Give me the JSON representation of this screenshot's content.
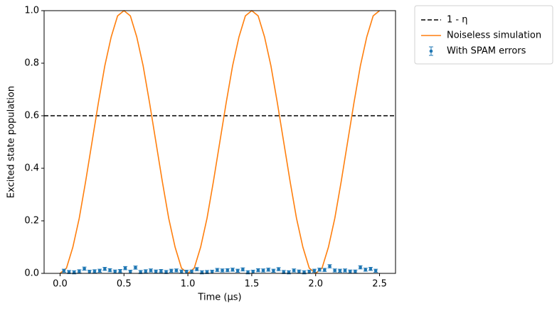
{
  "chart_data": {
    "type": "line",
    "xlabel": "Time (μs)",
    "ylabel": "Excited state population",
    "xlim": [
      -0.125,
      2.625
    ],
    "ylim": [
      0,
      1
    ],
    "xticks": [
      {
        "value": 0,
        "label": "0.0"
      },
      0.5,
      {
        "value": 1,
        "label": "1.0"
      },
      1.5,
      {
        "value": 2,
        "label": "2.0"
      },
      2.5
    ],
    "yticks": [
      {
        "value": 0,
        "label": "0.0"
      },
      0.2,
      0.4,
      0.6,
      0.8,
      {
        "value": 1,
        "label": "1.0"
      }
    ],
    "grid": false,
    "legend": "outside upper right",
    "hline": {
      "name": "1 - η",
      "y": 0.6,
      "color": "#000000"
    },
    "series": [
      {
        "name": "Noiseless simulation",
        "color": "#ff7f0e",
        "x": [
          0,
          0.05,
          0.1,
          0.15,
          0.2,
          0.25,
          0.3,
          0.35,
          0.4,
          0.45,
          0.5,
          0.55,
          0.6,
          0.65,
          0.7,
          0.75,
          0.8,
          0.85,
          0.9,
          0.95,
          1,
          1.05,
          1.1,
          1.15,
          1.2,
          1.25,
          1.3,
          1.35,
          1.4,
          1.45,
          1.5,
          1.55,
          1.6,
          1.65,
          1.7,
          1.75,
          1.8,
          1.85,
          1.9,
          1.95,
          2,
          2.05,
          2.1,
          2.15,
          2.2,
          2.25,
          2.3,
          2.35,
          2.4,
          2.45,
          2.5
        ],
        "values": [
          0,
          0.02,
          0.1,
          0.21,
          0.35,
          0.5,
          0.65,
          0.79,
          0.9,
          0.98,
          1,
          0.98,
          0.9,
          0.79,
          0.65,
          0.5,
          0.35,
          0.21,
          0.1,
          0.02,
          0,
          0.02,
          0.1,
          0.21,
          0.35,
          0.5,
          0.65,
          0.79,
          0.9,
          0.98,
          1,
          0.98,
          0.9,
          0.79,
          0.65,
          0.5,
          0.35,
          0.21,
          0.1,
          0.02,
          0,
          0.02,
          0.1,
          0.21,
          0.35,
          0.5,
          0.65,
          0.79,
          0.9,
          0.98,
          1
        ]
      },
      {
        "name": "With SPAM errors",
        "color": "#1f77b4",
        "x": [
          0.03,
          0.07,
          0.11,
          0.15,
          0.19,
          0.23,
          0.27,
          0.31,
          0.35,
          0.39,
          0.43,
          0.47,
          0.51,
          0.55,
          0.59,
          0.63,
          0.67,
          0.71,
          0.75,
          0.79,
          0.83,
          0.87,
          0.91,
          0.95,
          0.99,
          1.03,
          1.07,
          1.11,
          1.15,
          1.19,
          1.23,
          1.27,
          1.31,
          1.35,
          1.39,
          1.43,
          1.47,
          1.51,
          1.55,
          1.59,
          1.63,
          1.67,
          1.71,
          1.75,
          1.79,
          1.83,
          1.87,
          1.91,
          1.95,
          1.99,
          2.03,
          2.07,
          2.11,
          2.15,
          2.19,
          2.23,
          2.27,
          2.31,
          2.35,
          2.39,
          2.43,
          2.47
        ],
        "values": [
          0.01,
          0.005,
          0.004,
          0.008,
          0.018,
          0.006,
          0.008,
          0.01,
          0.017,
          0.012,
          0.007,
          0.009,
          0.02,
          0.006,
          0.022,
          0.005,
          0.008,
          0.011,
          0.007,
          0.009,
          0.005,
          0.01,
          0.011,
          0.007,
          0.006,
          0.007,
          0.016,
          0.004,
          0.005,
          0.006,
          0.013,
          0.011,
          0.012,
          0.014,
          0.01,
          0.015,
          0.004,
          0.006,
          0.012,
          0.011,
          0.014,
          0.01,
          0.016,
          0.005,
          0.004,
          0.011,
          0.007,
          0.004,
          0.006,
          0.01,
          0.014,
          0.013,
          0.027,
          0.011,
          0.01,
          0.011,
          0.007,
          0.007,
          0.023,
          0.014,
          0.017,
          0.01
        ],
        "errors": 0.006
      }
    ]
  }
}
